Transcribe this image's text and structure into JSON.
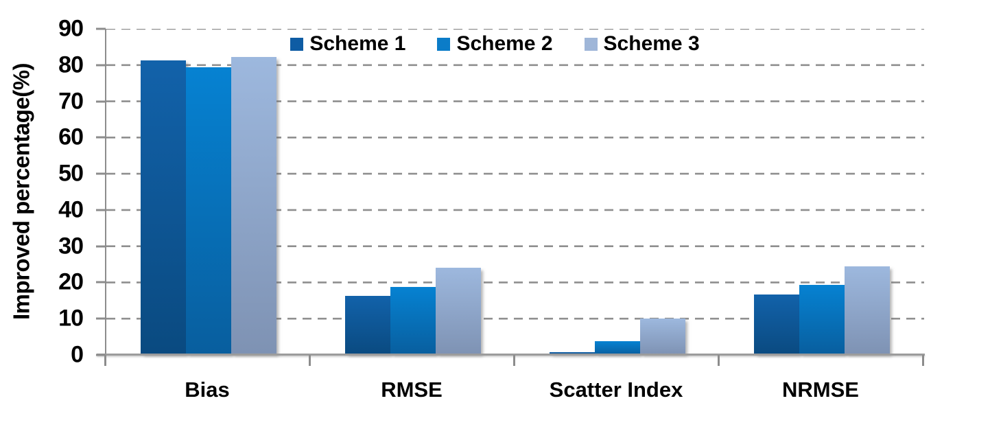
{
  "chart_data": {
    "type": "bar",
    "title": "",
    "xlabel": "",
    "ylabel": "Improved percentage(%)",
    "categories": [
      "Bias",
      "RMSE",
      "Scatter Index",
      "NRMSE"
    ],
    "series": [
      {
        "name": "Scheme 1",
        "values": [
          81.3,
          16.3,
          0.8,
          16.7
        ],
        "swatch": "#0e5ca4",
        "gradient_top": "#1262aa",
        "gradient_bottom": "#0a4a80"
      },
      {
        "name": "Scheme 2",
        "values": [
          79.4,
          18.8,
          3.8,
          19.3
        ],
        "swatch": "#0b7cc8",
        "gradient_top": "#0682d2",
        "gradient_bottom": "#085e9e"
      },
      {
        "name": "Scheme 3",
        "values": [
          82.2,
          24.0,
          10.0,
          24.4
        ],
        "swatch": "#9fb6d8",
        "gradient_top": "#9db8de",
        "gradient_bottom": "#7e92b3"
      }
    ],
    "ylim": [
      0,
      90
    ],
    "yticks": [
      0,
      10,
      20,
      30,
      40,
      50,
      60,
      70,
      80,
      90
    ],
    "grid": "horizontal-dashed",
    "legend_position": "top-center"
  },
  "colors": {
    "grid": "#8f8f8f",
    "axis": "#8c8c8c",
    "baseline": "#9c9c9c",
    "text": "#000000"
  }
}
